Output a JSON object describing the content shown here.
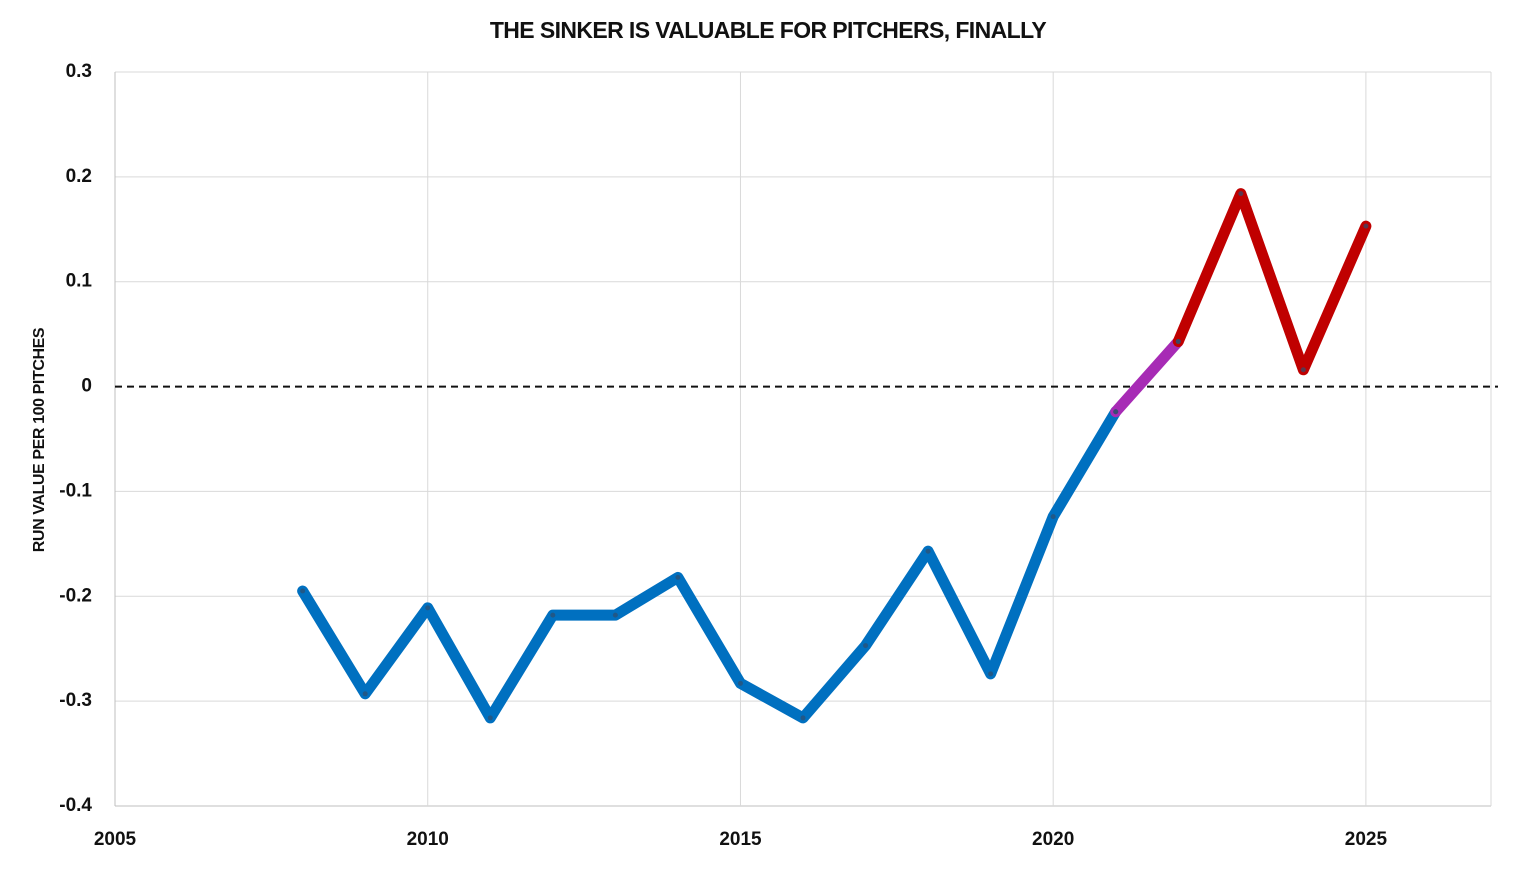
{
  "chart_data": {
    "type": "line",
    "title": "THE SINKER IS VALUABLE FOR PITCHERS, FINALLY",
    "y_label": "RUN VALUE PER 100 PITCHES",
    "x": [
      2008,
      2009,
      2010,
      2011,
      2012,
      2013,
      2014,
      2015,
      2016,
      2017,
      2018,
      2019,
      2020,
      2021,
      2022,
      2023,
      2024,
      2025
    ],
    "series": [
      {
        "color": "#0070c0",
        "values": [
          -0.195,
          -0.293,
          -0.211,
          -0.316,
          -0.218,
          -0.218,
          -0.182,
          -0.283,
          -0.316,
          -0.247,
          -0.157,
          -0.274,
          -0.124,
          -0.024,
          null,
          null,
          null,
          null
        ]
      },
      {
        "color": "#a72bb5",
        "values": [
          null,
          null,
          null,
          null,
          null,
          null,
          null,
          null,
          null,
          null,
          null,
          null,
          null,
          -0.024,
          0.043,
          null,
          null,
          null
        ]
      },
      {
        "color": "#c00000",
        "values": [
          null,
          null,
          null,
          null,
          null,
          null,
          null,
          null,
          null,
          null,
          null,
          null,
          null,
          null,
          0.043,
          0.184,
          0.016,
          0.153
        ]
      }
    ],
    "xlim": [
      2005,
      2027
    ],
    "xticks": [
      2005,
      2010,
      2015,
      2020,
      2025
    ],
    "ylim": [
      -0.4,
      0.3
    ],
    "yticks": [
      -0.4,
      -0.3,
      -0.2,
      -0.1,
      0,
      0.1,
      0.2,
      0.3
    ],
    "grid": true
  }
}
